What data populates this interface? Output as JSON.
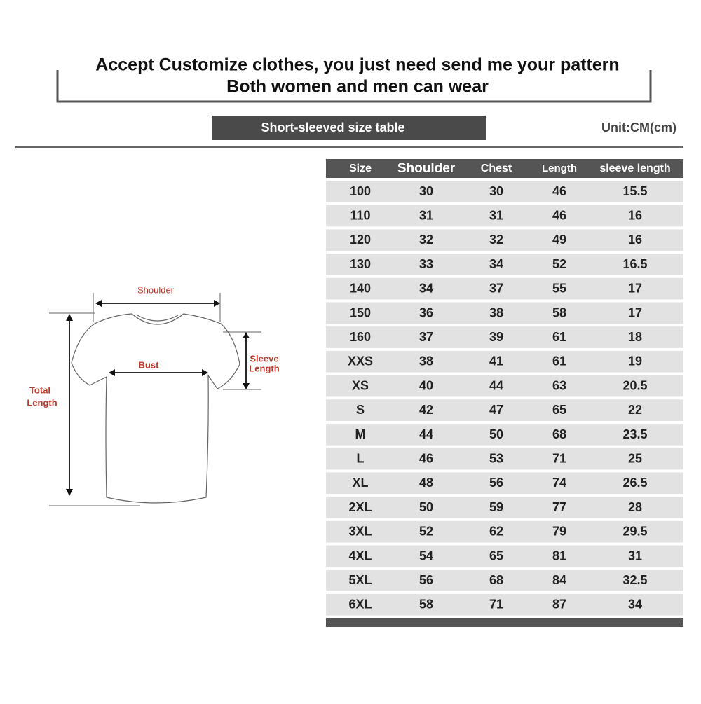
{
  "header": {
    "line1": "Accept Customize clothes, you just need send me your pattern",
    "line2": "Both women and men can wear"
  },
  "title": "Short-sleeved size  table",
  "unit": "Unit:CM(cm)",
  "diagram": {
    "shoulder": "Shoulder",
    "bust": "Bust",
    "sleeve": [
      "Sleeve",
      "Length"
    ],
    "total": [
      "Total",
      "Length"
    ]
  },
  "table": {
    "columns": [
      "Size",
      "Shoulder",
      "Chest",
      "Length",
      "sleeve length"
    ],
    "rows": [
      [
        "100",
        "30",
        "30",
        "46",
        "15.5"
      ],
      [
        "110",
        "31",
        "31",
        "46",
        "16"
      ],
      [
        "120",
        "32",
        "32",
        "49",
        "16"
      ],
      [
        "130",
        "33",
        "34",
        "52",
        "16.5"
      ],
      [
        "140",
        "34",
        "37",
        "55",
        "17"
      ],
      [
        "150",
        "36",
        "38",
        "58",
        "17"
      ],
      [
        "160",
        "37",
        "39",
        "61",
        "18"
      ],
      [
        "XXS",
        "38",
        "41",
        "61",
        "19"
      ],
      [
        "XS",
        "40",
        "44",
        "63",
        "20.5"
      ],
      [
        "S",
        "42",
        "47",
        "65",
        "22"
      ],
      [
        "M",
        "44",
        "50",
        "68",
        "23.5"
      ],
      [
        "L",
        "46",
        "53",
        "71",
        "25"
      ],
      [
        "XL",
        "48",
        "56",
        "74",
        "26.5"
      ],
      [
        "2XL",
        "50",
        "59",
        "77",
        "28"
      ],
      [
        "3XL",
        "52",
        "62",
        "79",
        "29.5"
      ],
      [
        "4XL",
        "54",
        "65",
        "81",
        "31"
      ],
      [
        "5XL",
        "56",
        "68",
        "84",
        "32.5"
      ],
      [
        "6XL",
        "58",
        "71",
        "87",
        "34"
      ]
    ]
  }
}
